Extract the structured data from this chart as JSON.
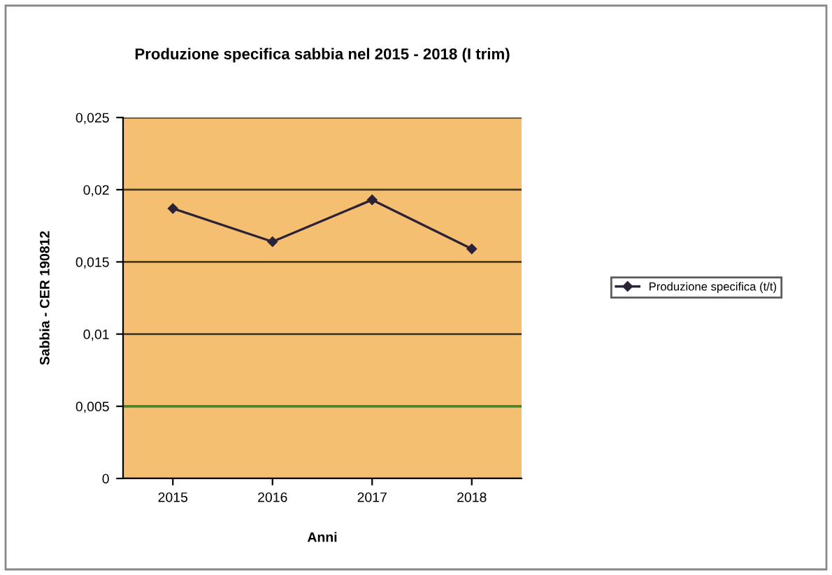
{
  "chart_data": {
    "type": "line",
    "title": "Produzione specifica sabbia nel 2015 - 2018 (I trim)",
    "xlabel": "Anni",
    "ylabel": "Sabbia - CER 190812",
    "categories": [
      "2015",
      "2016",
      "2017",
      "2018"
    ],
    "series": [
      {
        "name": "Produzione specifica (t/t)",
        "color": "#2b2238",
        "values": [
          0.0187,
          0.0164,
          0.0193,
          0.0159
        ]
      }
    ],
    "ylim": [
      0,
      0.025
    ],
    "yticks": [
      {
        "value": 0,
        "label": "0"
      },
      {
        "value": 0.005,
        "label": "0,005"
      },
      {
        "value": 0.01,
        "label": "0,01"
      },
      {
        "value": 0.015,
        "label": "0,015"
      },
      {
        "value": 0.02,
        "label": "0,02"
      },
      {
        "value": 0.025,
        "label": "0,025"
      }
    ],
    "ref_lines": [
      {
        "axis": "y",
        "value": 0.005,
        "color": "#3a8a2a"
      }
    ],
    "grid": "y",
    "legend": "right",
    "marker": "diamond",
    "line_style": "solid"
  }
}
